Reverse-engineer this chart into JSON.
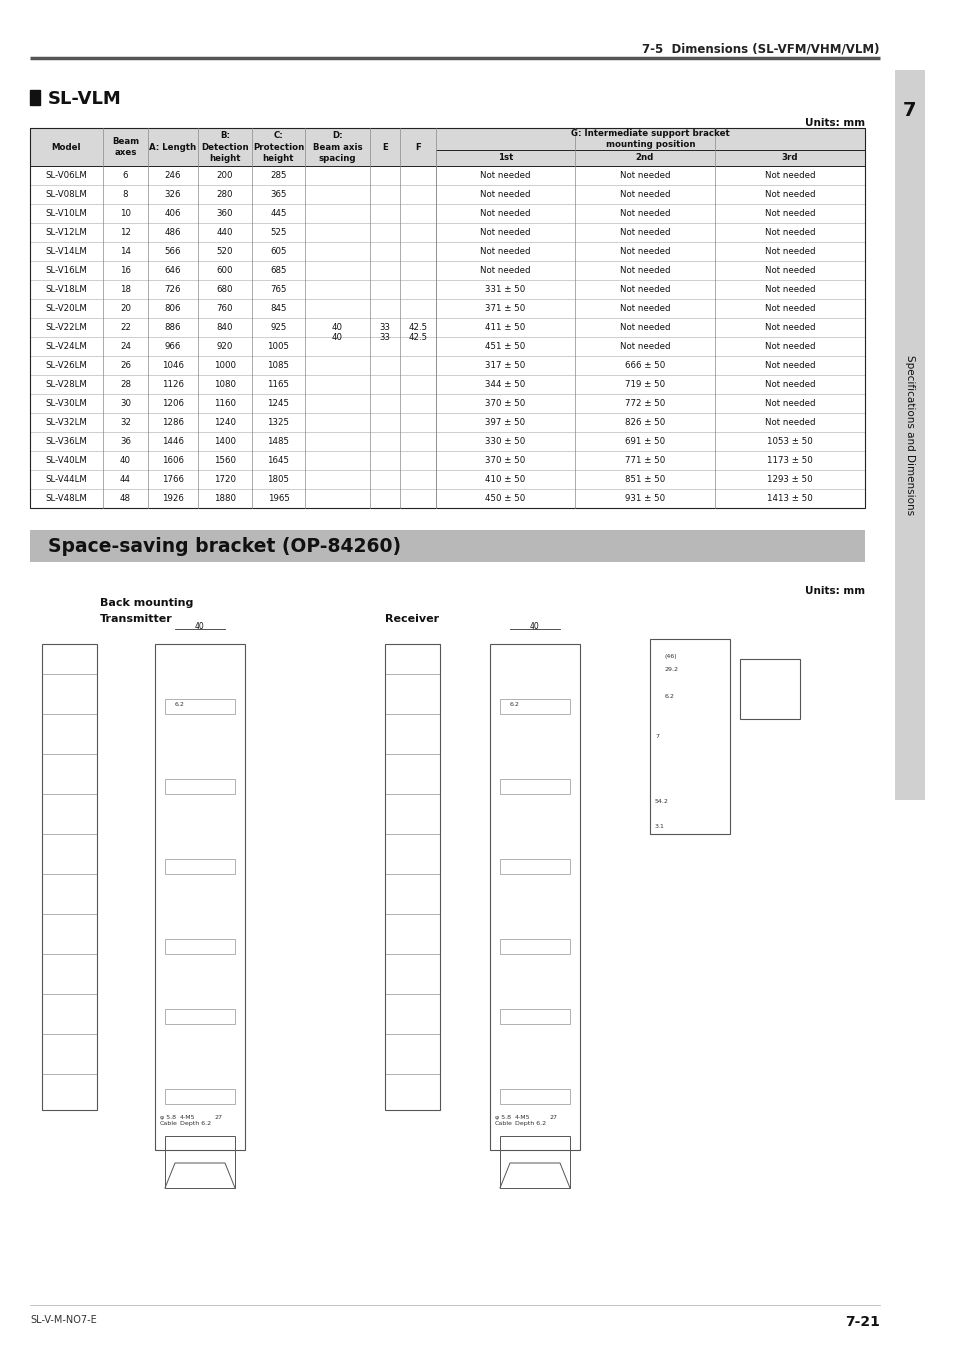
{
  "page_header_right": "7-5  Dimensions (SL-VFM/VHM/VLM)",
  "section_title": "SL-VLM",
  "units_label": "Units: mm",
  "table_headers": [
    "Model",
    "Beam\naxes",
    "A: Length",
    "B:\nDetection\nheight",
    "C:\nProtection\nheight",
    "D:\nBeam axis\nspacing",
    "E",
    "F",
    "1st",
    "2nd",
    "3rd"
  ],
  "col_header_g": "G: Intermediate support bracket\nmounting position",
  "table_rows": [
    [
      "SL-V06LM",
      "6",
      "246",
      "200",
      "285",
      "",
      "",
      "",
      "Not needed",
      "Not needed",
      "Not needed"
    ],
    [
      "SL-V08LM",
      "8",
      "326",
      "280",
      "365",
      "",
      "",
      "",
      "Not needed",
      "Not needed",
      "Not needed"
    ],
    [
      "SL-V10LM",
      "10",
      "406",
      "360",
      "445",
      "",
      "",
      "",
      "Not needed",
      "Not needed",
      "Not needed"
    ],
    [
      "SL-V12LM",
      "12",
      "486",
      "440",
      "525",
      "",
      "",
      "",
      "Not needed",
      "Not needed",
      "Not needed"
    ],
    [
      "SL-V14LM",
      "14",
      "566",
      "520",
      "605",
      "",
      "",
      "",
      "Not needed",
      "Not needed",
      "Not needed"
    ],
    [
      "SL-V16LM",
      "16",
      "646",
      "600",
      "685",
      "",
      "",
      "",
      "Not needed",
      "Not needed",
      "Not needed"
    ],
    [
      "SL-V18LM",
      "18",
      "726",
      "680",
      "765",
      "",
      "",
      "",
      "331 ± 50",
      "Not needed",
      "Not needed"
    ],
    [
      "SL-V20LM",
      "20",
      "806",
      "760",
      "845",
      "",
      "",
      "",
      "371 ± 50",
      "Not needed",
      "Not needed"
    ],
    [
      "SL-V22LM",
      "22",
      "886",
      "840",
      "925",
      "40",
      "33",
      "42.5",
      "411 ± 50",
      "Not needed",
      "Not needed"
    ],
    [
      "SL-V24LM",
      "24",
      "966",
      "920",
      "1005",
      "",
      "",
      "",
      "451 ± 50",
      "Not needed",
      "Not needed"
    ],
    [
      "SL-V26LM",
      "26",
      "1046",
      "1000",
      "1085",
      "",
      "",
      "",
      "317 ± 50",
      "666 ± 50",
      "Not needed"
    ],
    [
      "SL-V28LM",
      "28",
      "1126",
      "1080",
      "1165",
      "",
      "",
      "",
      "344 ± 50",
      "719 ± 50",
      "Not needed"
    ],
    [
      "SL-V30LM",
      "30",
      "1206",
      "1160",
      "1245",
      "",
      "",
      "",
      "370 ± 50",
      "772 ± 50",
      "Not needed"
    ],
    [
      "SL-V32LM",
      "32",
      "1286",
      "1240",
      "1325",
      "",
      "",
      "",
      "397 ± 50",
      "826 ± 50",
      "Not needed"
    ],
    [
      "SL-V36LM",
      "36",
      "1446",
      "1400",
      "1485",
      "",
      "",
      "",
      "330 ± 50",
      "691 ± 50",
      "1053 ± 50"
    ],
    [
      "SL-V40LM",
      "40",
      "1606",
      "1560",
      "1645",
      "",
      "",
      "",
      "370 ± 50",
      "771 ± 50",
      "1173 ± 50"
    ],
    [
      "SL-V44LM",
      "44",
      "1766",
      "1720",
      "1805",
      "",
      "",
      "",
      "410 ± 50",
      "851 ± 50",
      "1293 ± 50"
    ],
    [
      "SL-V48LM",
      "48",
      "1926",
      "1880",
      "1965",
      "",
      "",
      "",
      "450 ± 50",
      "931 ± 50",
      "1413 ± 50"
    ]
  ],
  "bracket_title": "Space-saving bracket (OP-84260)",
  "back_mounting": "Back mounting",
  "transmitter": "Transmitter",
  "receiver": "Receiver",
  "footer_left": "SL-V-M-NO7-E",
  "footer_right": "7-21",
  "sidebar_text": "Specifications and Dimensions",
  "header_line_color": "#333333",
  "table_border_color": "#000000",
  "table_header_bg": "#e0e0e0",
  "bracket_title_bg": "#b0b0b0",
  "bracket_title_color": "#000000",
  "page_bg": "#ffffff"
}
